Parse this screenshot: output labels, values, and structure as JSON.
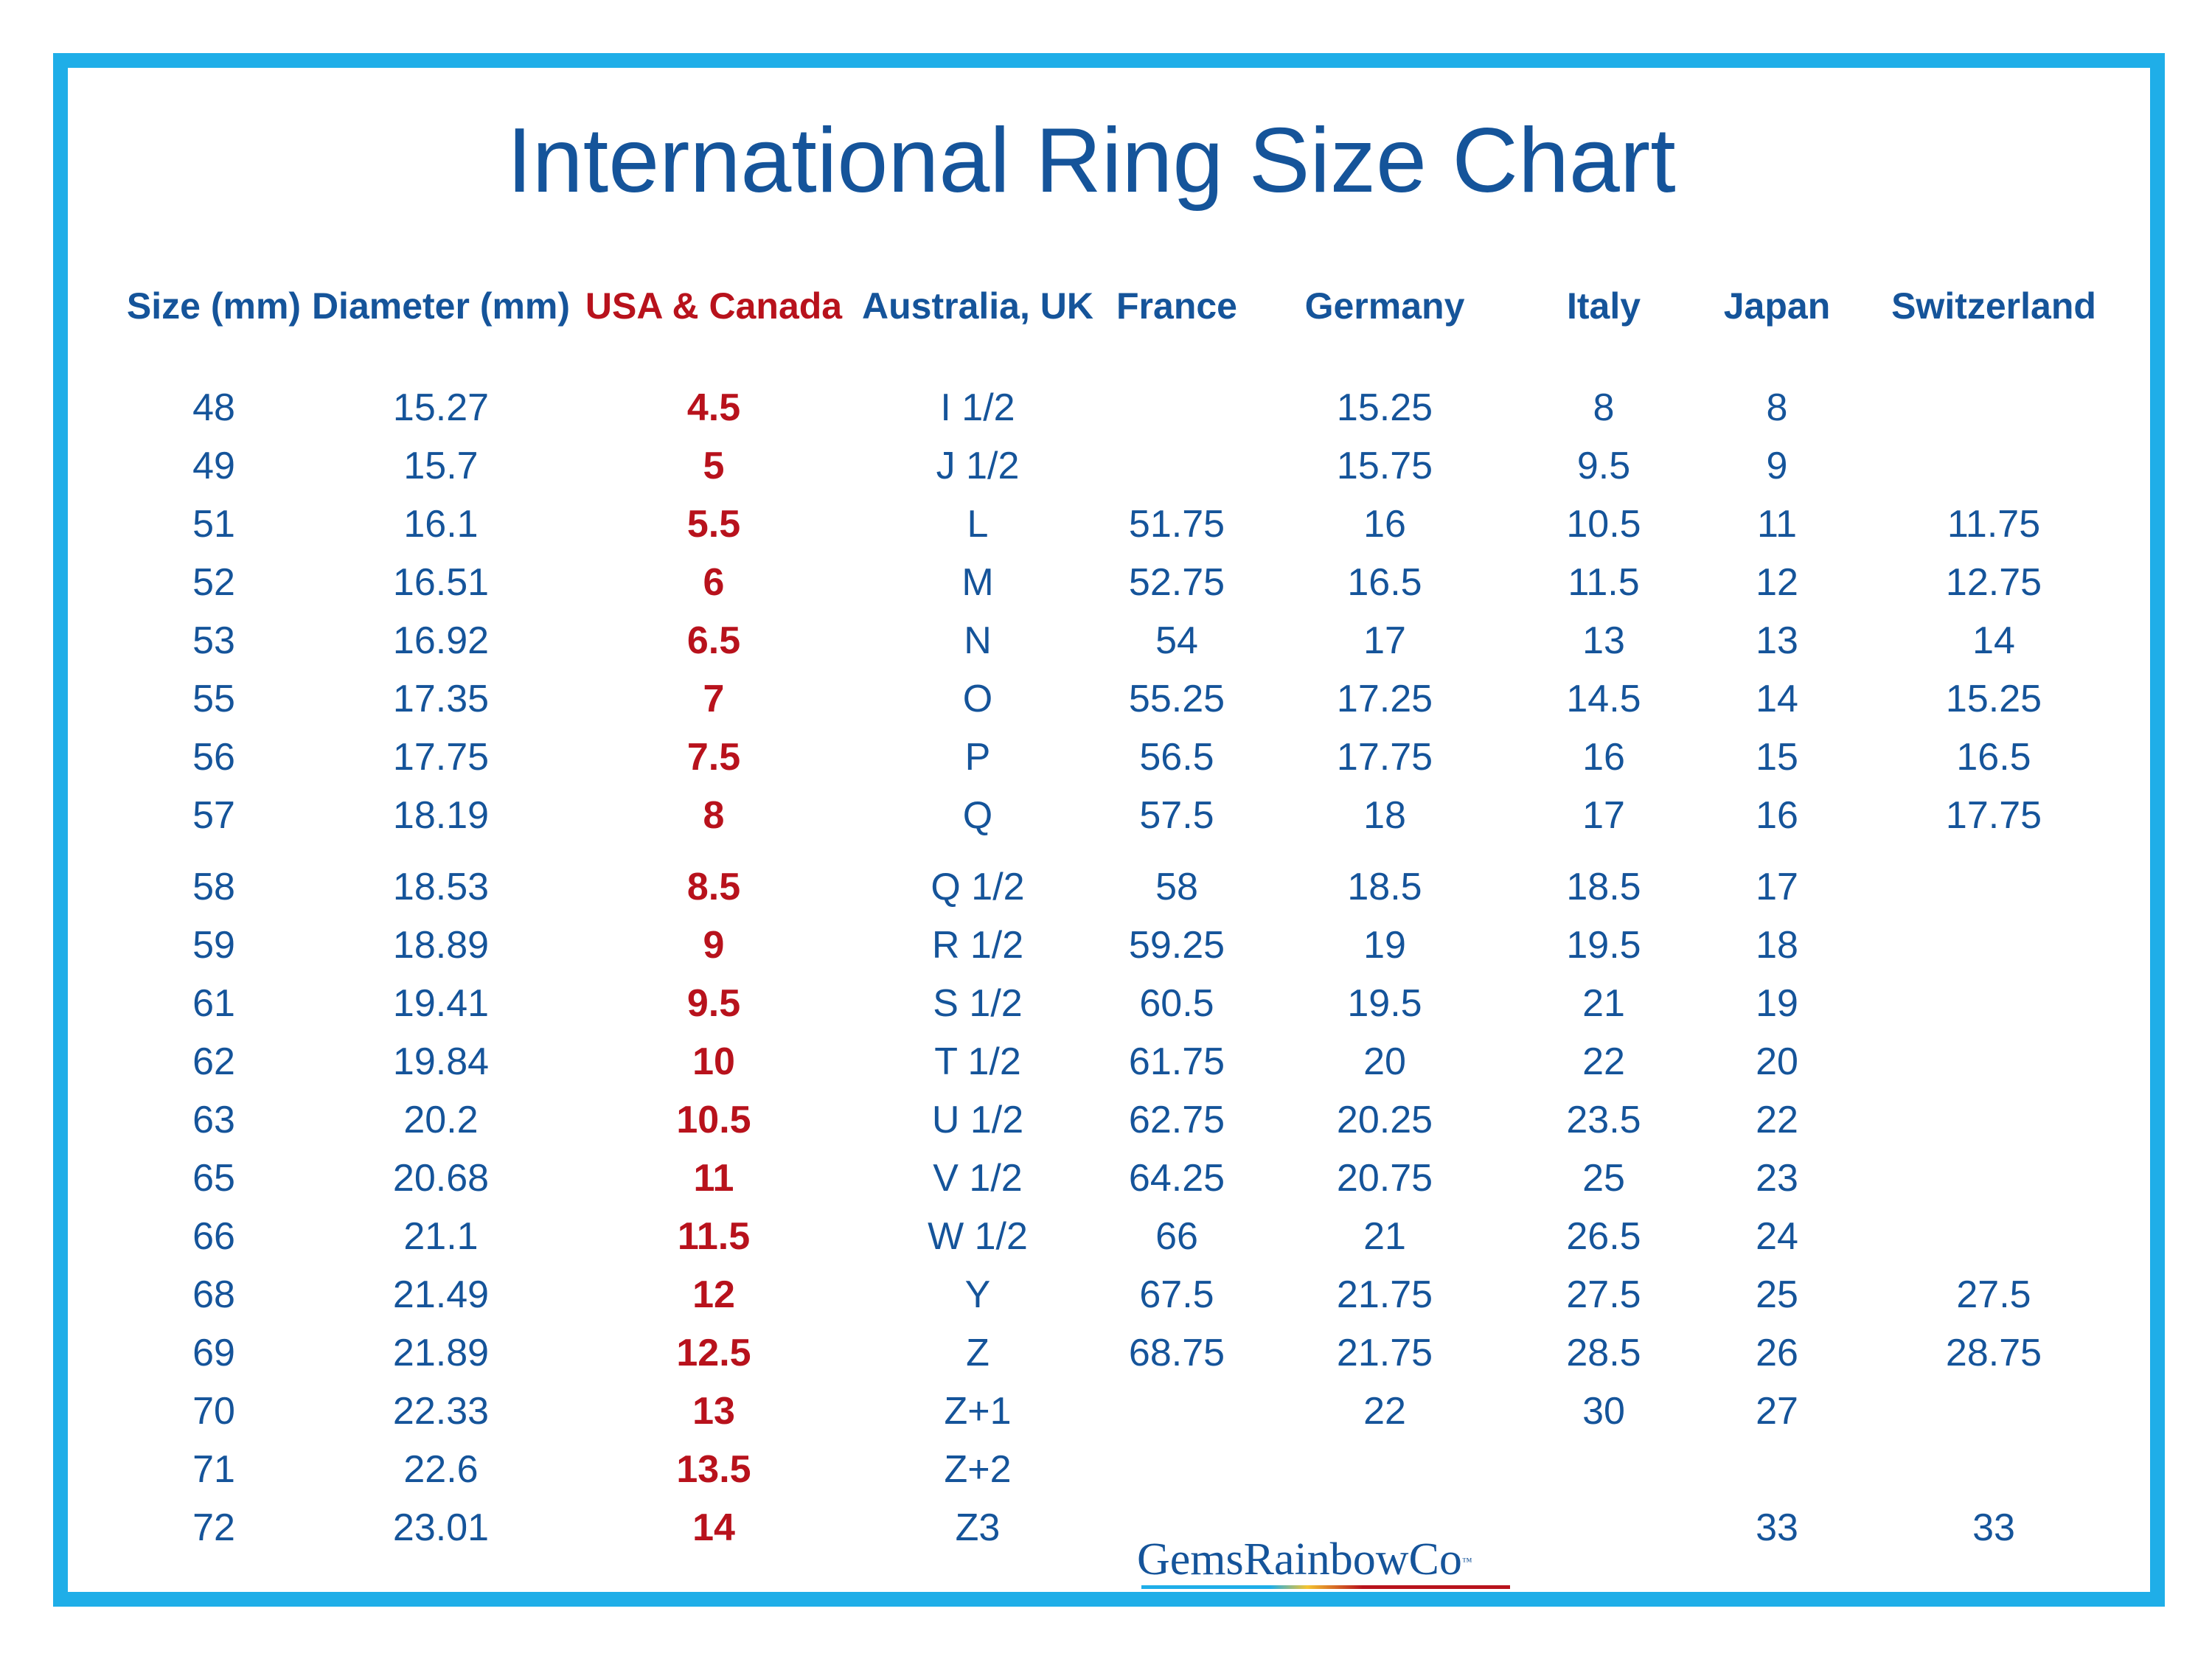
{
  "title": "International Ring Size Chart",
  "headers": [
    "Size (mm)",
    "Diameter (mm)",
    "USA & Canada",
    "Australia, UK",
    "France",
    "Germany",
    "Italy",
    "Japan",
    "Switzerland"
  ],
  "highlight_column": "USA & Canada",
  "colors": {
    "frame": "#1faee8",
    "text": "#15549a",
    "highlight": "#b8121c"
  },
  "rows": [
    [
      "48",
      "15.27",
      "4.5",
      "I 1/2",
      "",
      "15.25",
      "8",
      "8",
      ""
    ],
    [
      "49",
      "15.7",
      "5",
      "J 1/2",
      "",
      "15.75",
      "9.5",
      "9",
      ""
    ],
    [
      "51",
      "16.1",
      "5.5",
      "L",
      "51.75",
      "16",
      "10.5",
      "11",
      "11.75"
    ],
    [
      "52",
      "16.51",
      "6",
      "M",
      "52.75",
      "16.5",
      "11.5",
      "12",
      "12.75"
    ],
    [
      "53",
      "16.92",
      "6.5",
      "N",
      "54",
      "17",
      "13",
      "13",
      "14"
    ],
    [
      "55",
      "17.35",
      "7",
      "O",
      "55.25",
      "17.25",
      "14.5",
      "14",
      "15.25"
    ],
    [
      "56",
      "17.75",
      "7.5",
      "P",
      "56.5",
      "17.75",
      "16",
      "15",
      "16.5"
    ],
    [
      "57",
      "18.19",
      "8",
      "Q",
      "57.5",
      "18",
      "17",
      "16",
      "17.75"
    ],
    [
      "58",
      "18.53",
      "8.5",
      "Q 1/2",
      "58",
      "18.5",
      "18.5",
      "17",
      ""
    ],
    [
      "59",
      "18.89",
      "9",
      "R 1/2",
      "59.25",
      "19",
      "19.5",
      "18",
      ""
    ],
    [
      "61",
      "19.41",
      "9.5",
      "S 1/2",
      "60.5",
      "19.5",
      "21",
      "19",
      ""
    ],
    [
      "62",
      "19.84",
      "10",
      "T 1/2",
      "61.75",
      "20",
      "22",
      "20",
      ""
    ],
    [
      "63",
      "20.2",
      "10.5",
      "U 1/2",
      "62.75",
      "20.25",
      "23.5",
      "22",
      ""
    ],
    [
      "65",
      "20.68",
      "11",
      "V 1/2",
      "64.25",
      "20.75",
      "25",
      "23",
      ""
    ],
    [
      "66",
      "21.1",
      "11.5",
      "W 1/2",
      "66",
      "21",
      "26.5",
      "24",
      ""
    ],
    [
      "68",
      "21.49",
      "12",
      "Y",
      "67.5",
      "21.75",
      "27.5",
      "25",
      "27.5"
    ],
    [
      "69",
      "21.89",
      "12.5",
      "Z",
      "68.75",
      "21.75",
      "28.5",
      "26",
      "28.75"
    ],
    [
      "70",
      "22.33",
      "13",
      "Z+1",
      "",
      "22",
      "30",
      "27",
      ""
    ],
    [
      "71",
      "22.6",
      "13.5",
      "Z+2",
      "",
      "",
      "",
      "",
      ""
    ],
    [
      "72",
      "23.01",
      "14",
      "Z3",
      "",
      "",
      "",
      "33",
      "33"
    ]
  ],
  "logo": {
    "text": "GemsRainbowCo",
    "tm": "™"
  }
}
